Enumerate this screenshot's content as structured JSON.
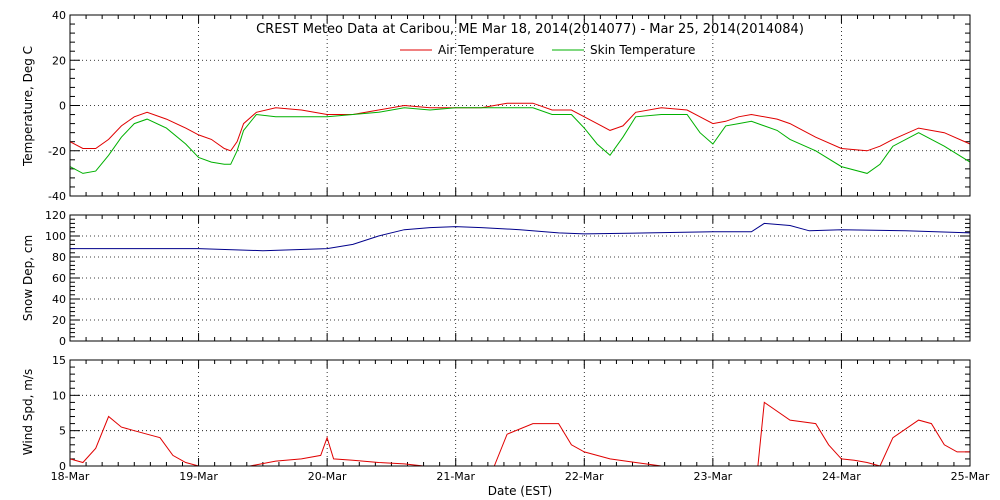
{
  "chart_data": [
    {
      "type": "line",
      "panel": "temperature",
      "title": "CREST Meteo Data at Caribou, ME   Mar 18, 2014(2014077) - Mar 25, 2014(2014084)",
      "ylabel": "Temperature, Deg C",
      "ylim": [
        -40,
        40
      ],
      "yticks": [
        -40,
        -20,
        0,
        20,
        40
      ],
      "xlim": [
        0,
        7
      ],
      "legend_position": "top-center",
      "grid": true,
      "series": [
        {
          "name": "Air Temperature",
          "color": "#e00000",
          "x": [
            0,
            0.1,
            0.2,
            0.3,
            0.4,
            0.5,
            0.6,
            0.75,
            0.9,
            1.0,
            1.1,
            1.2,
            1.25,
            1.3,
            1.35,
            1.45,
            1.6,
            1.8,
            2.0,
            2.2,
            2.4,
            2.6,
            2.8,
            3.0,
            3.2,
            3.4,
            3.6,
            3.75,
            3.9,
            4.0,
            4.1,
            4.2,
            4.3,
            4.4,
            4.6,
            4.8,
            4.9,
            5.0,
            5.1,
            5.2,
            5.3,
            5.5,
            5.6,
            5.8,
            6.0,
            6.2,
            6.3,
            6.4,
            6.6,
            6.8,
            7.0
          ],
          "y": [
            -16,
            -19,
            -19,
            -15,
            -9,
            -5,
            -3,
            -6,
            -10,
            -13,
            -15,
            -19,
            -20,
            -16,
            -8,
            -3,
            -1,
            -2,
            -4,
            -4,
            -2,
            0,
            -1,
            -1,
            -1,
            1,
            1,
            -2,
            -2,
            -5,
            -8,
            -11,
            -9,
            -3,
            -1,
            -2,
            -5,
            -8,
            -7,
            -5,
            -4,
            -6,
            -8,
            -14,
            -19,
            -20,
            -18,
            -15,
            -10,
            -12,
            -17
          ]
        },
        {
          "name": "Skin Temperature",
          "color": "#00b000",
          "x": [
            0,
            0.1,
            0.2,
            0.3,
            0.4,
            0.5,
            0.6,
            0.75,
            0.9,
            1.0,
            1.1,
            1.2,
            1.25,
            1.3,
            1.35,
            1.45,
            1.6,
            1.8,
            2.0,
            2.2,
            2.4,
            2.6,
            2.8,
            3.0,
            3.2,
            3.4,
            3.6,
            3.75,
            3.9,
            4.0,
            4.1,
            4.2,
            4.3,
            4.4,
            4.6,
            4.8,
            4.9,
            5.0,
            5.1,
            5.2,
            5.3,
            5.5,
            5.6,
            5.8,
            6.0,
            6.2,
            6.3,
            6.4,
            6.6,
            6.8,
            7.0
          ],
          "y": [
            -27,
            -30,
            -29,
            -22,
            -14,
            -8,
            -6,
            -10,
            -17,
            -23,
            -25,
            -26,
            -26,
            -20,
            -11,
            -4,
            -5,
            -5,
            -5,
            -4,
            -3,
            -1,
            -2,
            -1,
            -1,
            -1,
            -1,
            -4,
            -4,
            -10,
            -17,
            -22,
            -14,
            -5,
            -4,
            -4,
            -12,
            -17,
            -9,
            -8,
            -7,
            -11,
            -15,
            -20,
            -27,
            -30,
            -26,
            -18,
            -12,
            -18,
            -25
          ]
        }
      ]
    },
    {
      "type": "line",
      "panel": "snow",
      "ylabel": "Snow Dep, cm",
      "ylim": [
        0,
        120
      ],
      "yticks": [
        0,
        20,
        40,
        60,
        80,
        100,
        120
      ],
      "xlim": [
        0,
        7
      ],
      "grid": true,
      "series": [
        {
          "color": "#00008b",
          "x": [
            0,
            0.5,
            1.0,
            1.5,
            2.0,
            2.2,
            2.4,
            2.6,
            2.8,
            3.0,
            3.2,
            3.5,
            3.8,
            4.0,
            4.5,
            5.0,
            5.3,
            5.4,
            5.6,
            5.75,
            6.0,
            6.5,
            7.0
          ],
          "y": [
            88,
            88,
            88,
            86,
            88,
            92,
            100,
            106,
            108,
            109,
            108,
            106,
            103,
            102,
            103,
            104,
            104,
            112,
            110,
            105,
            106,
            105,
            103
          ]
        }
      ]
    },
    {
      "type": "line",
      "panel": "wind",
      "ylabel": "Wind Spd, m/s",
      "xlabel": "Date (EST)",
      "ylim": [
        0,
        15
      ],
      "yticks": [
        0,
        5,
        10,
        15
      ],
      "xlim": [
        0,
        7
      ],
      "x_tick_labels": [
        "18-Mar",
        "19-Mar",
        "20-Mar",
        "21-Mar",
        "22-Mar",
        "23-Mar",
        "24-Mar",
        "25-Mar"
      ],
      "grid": true,
      "series": [
        {
          "color": "#e00000",
          "x": [
            0,
            0.1,
            0.2,
            0.3,
            0.4,
            0.5,
            0.6,
            0.7,
            0.8,
            0.9,
            1.0,
            1.1,
            1.2,
            1.4,
            1.6,
            1.8,
            1.95,
            2.0,
            2.05,
            2.2,
            2.4,
            2.6,
            2.75,
            2.8,
            3.0,
            3.2,
            3.3,
            3.4,
            3.6,
            3.8,
            3.9,
            4.0,
            4.2,
            4.4,
            4.6,
            4.75,
            4.9,
            5.0,
            5.2,
            5.35,
            5.4,
            5.6,
            5.8,
            5.9,
            6.0,
            6.1,
            6.2,
            6.3,
            6.4,
            6.6,
            6.7,
            6.8,
            6.9,
            7.0
          ],
          "y": [
            1,
            0.5,
            2.5,
            7,
            5.5,
            5,
            4.5,
            4,
            1.5,
            0.5,
            0,
            0,
            0,
            0,
            0.7,
            1,
            1.5,
            4,
            1,
            0.8,
            0.5,
            0.3,
            0,
            0,
            0,
            0,
            0,
            4.5,
            6,
            6,
            3,
            2,
            1,
            0.5,
            0,
            0,
            0,
            0,
            0,
            0,
            9,
            6.5,
            6,
            3,
            1,
            0.8,
            0.5,
            0,
            4,
            6.5,
            6,
            3,
            2,
            2
          ]
        }
      ]
    }
  ]
}
